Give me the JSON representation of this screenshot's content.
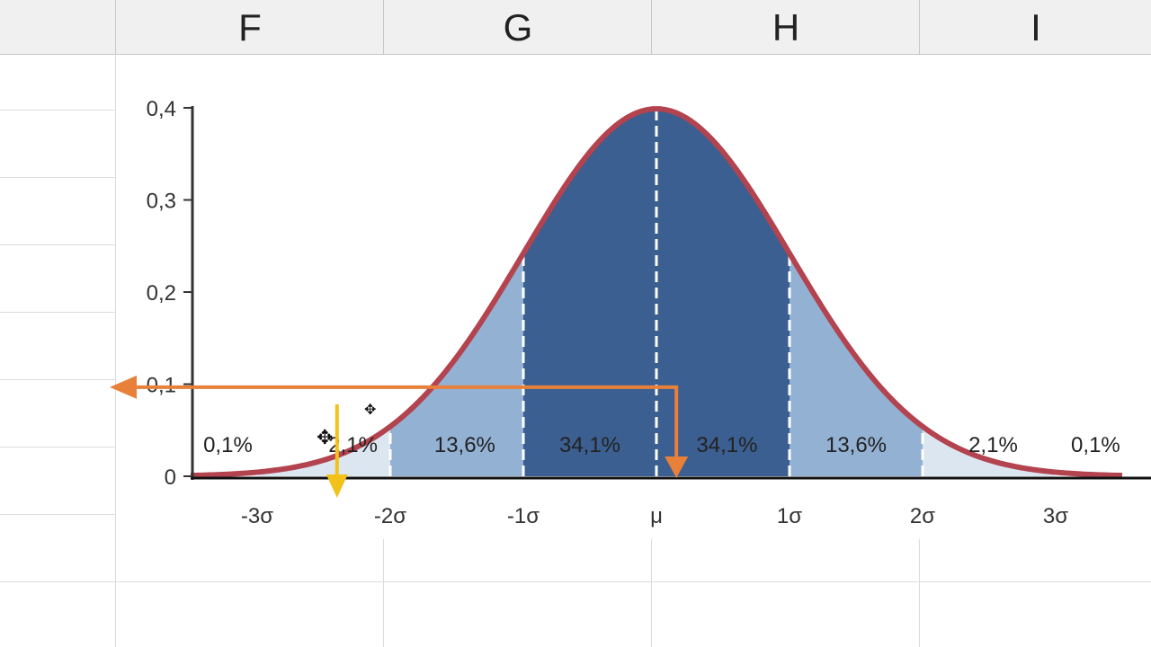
{
  "spreadsheet": {
    "columns": [
      {
        "id": "partial",
        "label": ""
      },
      {
        "id": "F",
        "label": "F"
      },
      {
        "id": "G",
        "label": "G"
      },
      {
        "id": "H",
        "label": "H"
      },
      {
        "id": "I",
        "label": "I"
      }
    ]
  },
  "chart_data": {
    "type": "area",
    "title": "",
    "xlabel": "",
    "ylabel": "",
    "ylim": [
      0,
      0.4
    ],
    "xlim": [
      -3.5,
      3.5
    ],
    "y_ticks": [
      {
        "value": 0,
        "label": "0"
      },
      {
        "value": 0.1,
        "label": "0,1"
      },
      {
        "value": 0.2,
        "label": "0,2"
      },
      {
        "value": 0.3,
        "label": "0,3"
      },
      {
        "value": 0.4,
        "label": "0,4"
      }
    ],
    "x_ticks": [
      {
        "value": -3,
        "label": "-3σ"
      },
      {
        "value": -2,
        "label": "-2σ"
      },
      {
        "value": -1,
        "label": "-1σ"
      },
      {
        "value": 0,
        "label": "μ"
      },
      {
        "value": 1,
        "label": "1σ"
      },
      {
        "value": 2,
        "label": "2σ"
      },
      {
        "value": 3,
        "label": "3σ"
      }
    ],
    "curve": "standard normal density",
    "segments": [
      {
        "from": -3.5,
        "to": -3,
        "label": "0,1%",
        "color": "#ffffff"
      },
      {
        "from": -3,
        "to": -2,
        "label": "2,1%",
        "color": "#dbe6f1"
      },
      {
        "from": -2,
        "to": -1,
        "label": "13,6%",
        "color": "#93b1d3"
      },
      {
        "from": -1,
        "to": 0,
        "label": "34,1%",
        "color": "#3b5f90"
      },
      {
        "from": 0,
        "to": 1,
        "label": "34,1%",
        "color": "#3b5f90"
      },
      {
        "from": 1,
        "to": 2,
        "label": "13,6%",
        "color": "#93b1d3"
      },
      {
        "from": 2,
        "to": 3,
        "label": "2,1%",
        "color": "#dbe6f1"
      },
      {
        "from": 3,
        "to": 3.5,
        "label": "0,1%",
        "color": "#ffffff"
      }
    ],
    "curve_color": "#b2434f",
    "annotations": {
      "orange_arrow": {
        "x": 0.15,
        "y": 0.0967,
        "color": "#e8803a"
      },
      "yellow_arrow": {
        "x": -2.4,
        "color": "#f2c21b"
      }
    }
  }
}
